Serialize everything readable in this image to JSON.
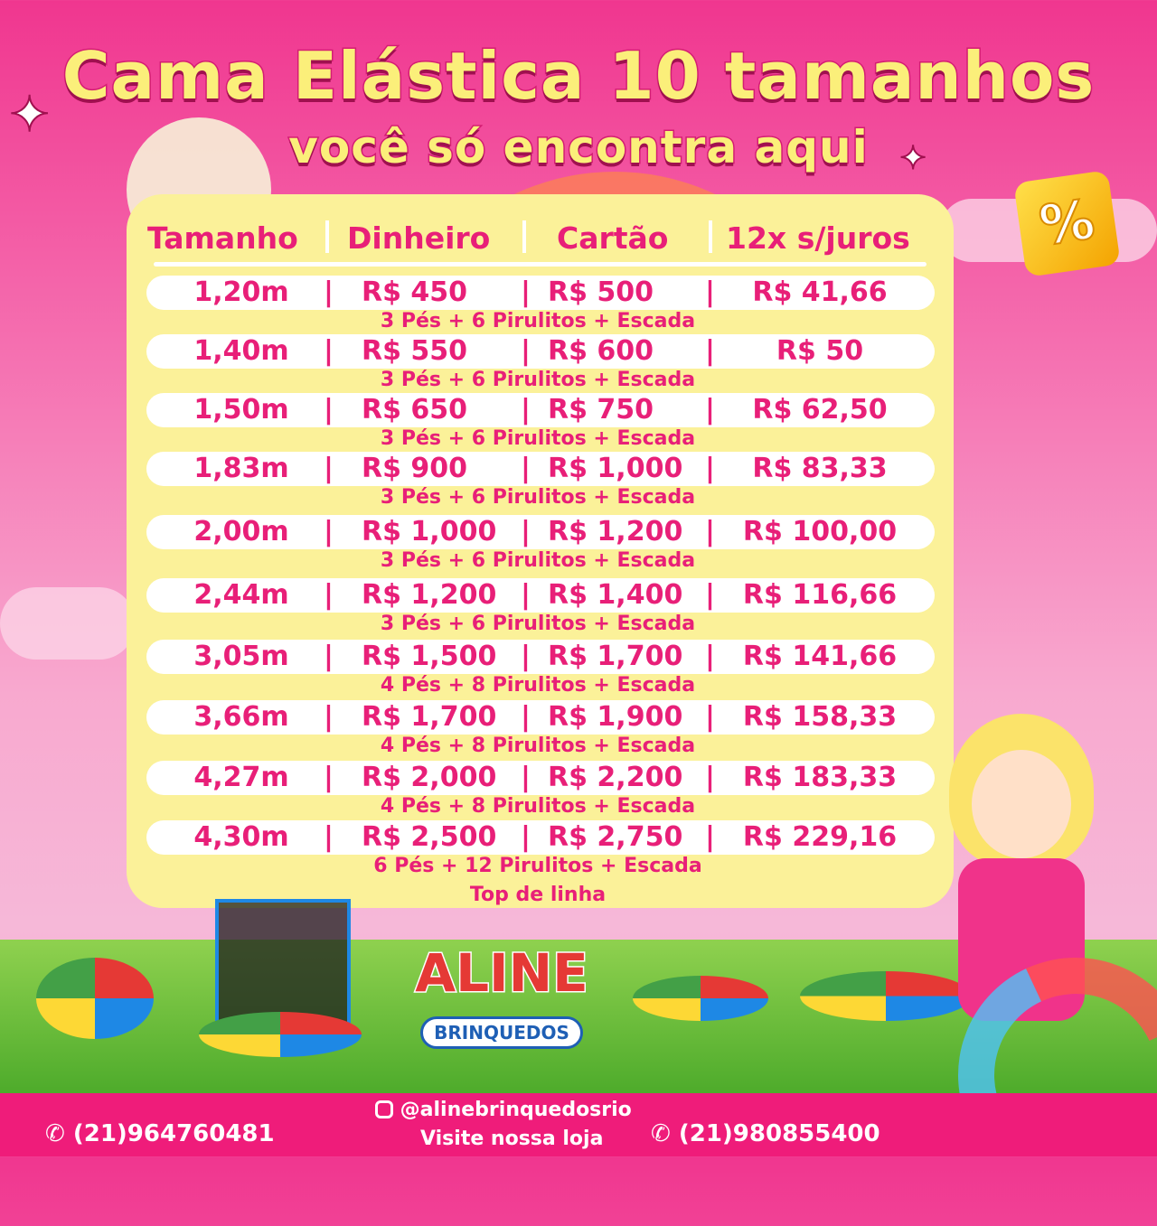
{
  "header": {
    "title": "Cama Elástica 10 tamanhos",
    "subtitle": "você só encontra aqui"
  },
  "table": {
    "columns": [
      "Tamanho",
      "Dinheiro",
      "Cartão",
      "12x s/juros"
    ],
    "rows": [
      {
        "size": "1,20m",
        "cash": "R$ 450",
        "card": "R$ 500",
        "installment": "R$ 41,66",
        "note": "3 Pés + 6 Pirulitos + Escada"
      },
      {
        "size": "1,40m",
        "cash": "R$ 550",
        "card": "R$ 600",
        "installment": "R$ 50",
        "note": "3 Pés + 6 Pirulitos + Escada"
      },
      {
        "size": "1,50m",
        "cash": "R$ 650",
        "card": "R$ 750",
        "installment": "R$ 62,50",
        "note": "3 Pés + 6 Pirulitos + Escada"
      },
      {
        "size": "1,83m",
        "cash": "R$ 900",
        "card": "R$ 1,000",
        "installment": "R$ 83,33",
        "note": "3 Pés + 6 Pirulitos + Escada"
      },
      {
        "size": "2,00m",
        "cash": "R$ 1,000",
        "card": "R$ 1,200",
        "installment": "R$ 100,00",
        "note": "3 Pés + 6 Pirulitos + Escada"
      },
      {
        "size": "2,44m",
        "cash": "R$ 1,200",
        "card": "R$ 1,400",
        "installment": "R$ 116,66",
        "note": "3 Pés + 6 Pirulitos + Escada"
      },
      {
        "size": "3,05m",
        "cash": "R$ 1,500",
        "card": "R$ 1,700",
        "installment": "R$ 141,66",
        "note": "4 Pés + 8 Pirulitos + Escada"
      },
      {
        "size": "3,66m",
        "cash": "R$ 1,700",
        "card": "R$ 1,900",
        "installment": "R$ 158,33",
        "note": "4 Pés + 8 Pirulitos + Escada"
      },
      {
        "size": "4,27m",
        "cash": "R$ 2,000",
        "card": "R$ 2,200",
        "installment": "R$ 183,33",
        "note": "4 Pés + 8 Pirulitos + Escada"
      },
      {
        "size": "4,30m",
        "cash": "R$ 2,500",
        "card": "R$ 2,750",
        "installment": "R$ 229,16",
        "note": "6 Pés + 12 Pirulitos + Escada"
      }
    ],
    "last_note": "Top de linha",
    "separator": "|"
  },
  "badge": {
    "symbol": "%"
  },
  "logo": {
    "name": "ALINE",
    "sub": "BRINQUEDOS"
  },
  "footer": {
    "phone_left": "(21)964760481",
    "instagram": "@alinebrinquedosrio",
    "visit": "Visite nossa loja",
    "phone_right": "(21)980855400"
  },
  "colors": {
    "pink": "#e81f78",
    "yellow": "#fbf199",
    "footer": "#ef1c7a"
  }
}
